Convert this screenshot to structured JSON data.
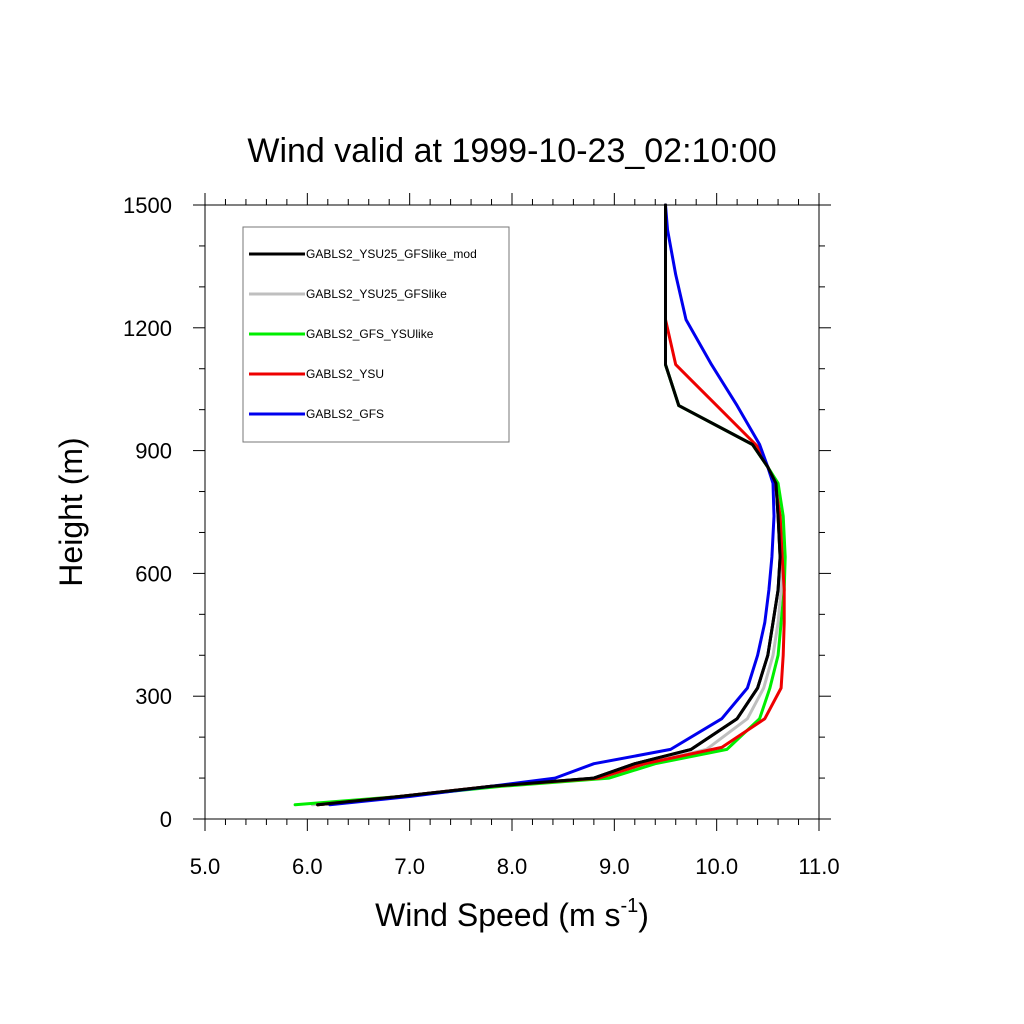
{
  "chart_data": {
    "type": "line",
    "title": "Wind valid at 1999-10-23_02:10:00",
    "xlabel": "Wind Speed (m s",
    "xlabel_sup": "-1",
    "xlabel_end": ")",
    "ylabel": "Height (m)",
    "xlim": [
      5.0,
      11.0
    ],
    "ylim": [
      0,
      1500
    ],
    "x_ticks": [
      5.0,
      6.0,
      7.0,
      8.0,
      9.0,
      10.0,
      11.0
    ],
    "x_tick_labels": [
      "5.0",
      "6.0",
      "7.0",
      "8.0",
      "9.0",
      "10.0",
      "11.0"
    ],
    "y_ticks": [
      0,
      300,
      600,
      900,
      1200,
      1500
    ],
    "y_tick_labels": [
      "0",
      "300",
      "600",
      "900",
      "1200",
      "1500"
    ],
    "grid": false,
    "legend_position": "top-left",
    "series": [
      {
        "name": "GABLS2_YSU25_GFSlike_mod",
        "color": "#000000",
        "points": [
          [
            6.1,
            35
          ],
          [
            6.9,
            55
          ],
          [
            7.8,
            80
          ],
          [
            8.8,
            100
          ],
          [
            9.2,
            135
          ],
          [
            9.75,
            170
          ],
          [
            10.2,
            245
          ],
          [
            10.4,
            320
          ],
          [
            10.5,
            400
          ],
          [
            10.55,
            480
          ],
          [
            10.6,
            560
          ],
          [
            10.62,
            640
          ],
          [
            10.6,
            740
          ],
          [
            10.58,
            820
          ],
          [
            10.5,
            860
          ],
          [
            10.35,
            915
          ],
          [
            9.63,
            1010
          ],
          [
            9.5,
            1110
          ],
          [
            9.5,
            1500
          ]
        ]
      },
      {
        "name": "GABLS2_YSU25_GFSlike",
        "color": "#bfbfbf",
        "points": [
          [
            6.05,
            35
          ],
          [
            6.9,
            55
          ],
          [
            7.8,
            80
          ],
          [
            8.85,
            100
          ],
          [
            9.3,
            135
          ],
          [
            9.9,
            170
          ],
          [
            10.3,
            245
          ],
          [
            10.46,
            320
          ],
          [
            10.55,
            400
          ],
          [
            10.6,
            480
          ],
          [
            10.63,
            560
          ],
          [
            10.65,
            640
          ],
          [
            10.62,
            740
          ],
          [
            10.58,
            820
          ],
          [
            10.5,
            860
          ],
          [
            10.35,
            915
          ],
          [
            9.63,
            1010
          ],
          [
            9.5,
            1110
          ],
          [
            9.5,
            1500
          ]
        ]
      },
      {
        "name": "GABLS2_GFS_YSUlike",
        "color": "#00ee00",
        "points": [
          [
            5.88,
            35
          ],
          [
            6.9,
            55
          ],
          [
            7.9,
            80
          ],
          [
            8.95,
            100
          ],
          [
            9.4,
            135
          ],
          [
            10.1,
            170
          ],
          [
            10.42,
            245
          ],
          [
            10.52,
            320
          ],
          [
            10.6,
            400
          ],
          [
            10.63,
            480
          ],
          [
            10.66,
            560
          ],
          [
            10.67,
            640
          ],
          [
            10.65,
            740
          ],
          [
            10.6,
            820
          ],
          [
            10.5,
            860
          ],
          [
            10.35,
            915
          ],
          [
            9.63,
            1010
          ],
          [
            9.5,
            1110
          ],
          [
            9.5,
            1500
          ]
        ]
      },
      {
        "name": "GABLS2_YSU",
        "color": "#ee0000",
        "points": [
          [
            6.1,
            35
          ],
          [
            6.9,
            55
          ],
          [
            7.8,
            80
          ],
          [
            8.85,
            100
          ],
          [
            9.3,
            135
          ],
          [
            10.05,
            175
          ],
          [
            10.47,
            245
          ],
          [
            10.63,
            320
          ],
          [
            10.65,
            400
          ],
          [
            10.66,
            480
          ],
          [
            10.66,
            560
          ],
          [
            10.64,
            640
          ],
          [
            10.62,
            740
          ],
          [
            10.57,
            820
          ],
          [
            10.5,
            860
          ],
          [
            10.4,
            910
          ],
          [
            10.0,
            1010
          ],
          [
            9.6,
            1110
          ],
          [
            9.5,
            1220
          ],
          [
            9.5,
            1500
          ]
        ]
      },
      {
        "name": "GABLS2_GFS",
        "color": "#0000ee",
        "points": [
          [
            6.22,
            35
          ],
          [
            7.0,
            55
          ],
          [
            7.8,
            80
          ],
          [
            8.42,
            100
          ],
          [
            8.8,
            135
          ],
          [
            9.55,
            170
          ],
          [
            10.05,
            245
          ],
          [
            10.3,
            320
          ],
          [
            10.4,
            400
          ],
          [
            10.47,
            480
          ],
          [
            10.51,
            560
          ],
          [
            10.54,
            640
          ],
          [
            10.56,
            740
          ],
          [
            10.55,
            820
          ],
          [
            10.5,
            860
          ],
          [
            10.42,
            915
          ],
          [
            10.2,
            1010
          ],
          [
            9.95,
            1110
          ],
          [
            9.7,
            1220
          ],
          [
            9.6,
            1330
          ],
          [
            9.52,
            1440
          ],
          [
            9.5,
            1500
          ]
        ]
      }
    ]
  }
}
